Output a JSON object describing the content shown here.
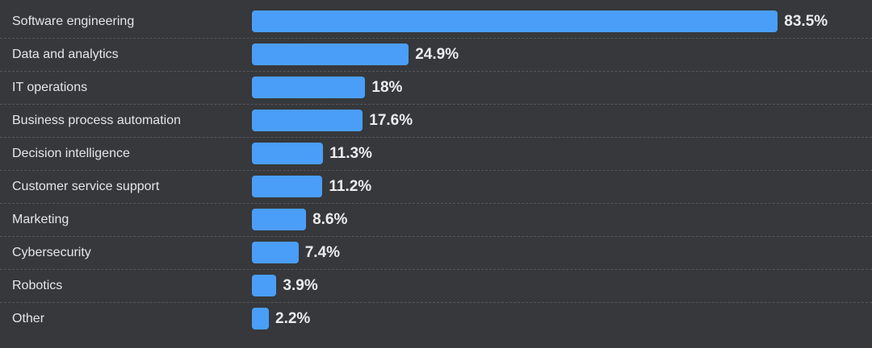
{
  "chart_data": {
    "type": "bar",
    "orientation": "horizontal",
    "categories": [
      "Software engineering",
      "Data and analytics",
      "IT operations",
      "Business process automation",
      "Decision intelligence",
      "Customer service support",
      "Marketing",
      "Cybersecurity",
      "Robotics",
      "Other"
    ],
    "values": [
      83.5,
      24.9,
      18,
      17.6,
      11.3,
      11.2,
      8.6,
      7.4,
      3.9,
      2.2
    ],
    "value_labels": [
      "83.5%",
      "24.9%",
      "18%",
      "17.6%",
      "11.3%",
      "11.2%",
      "8.6%",
      "7.4%",
      "3.9%",
      "2.2%"
    ],
    "bar_color": "#4a9ef8",
    "grid": false
  }
}
